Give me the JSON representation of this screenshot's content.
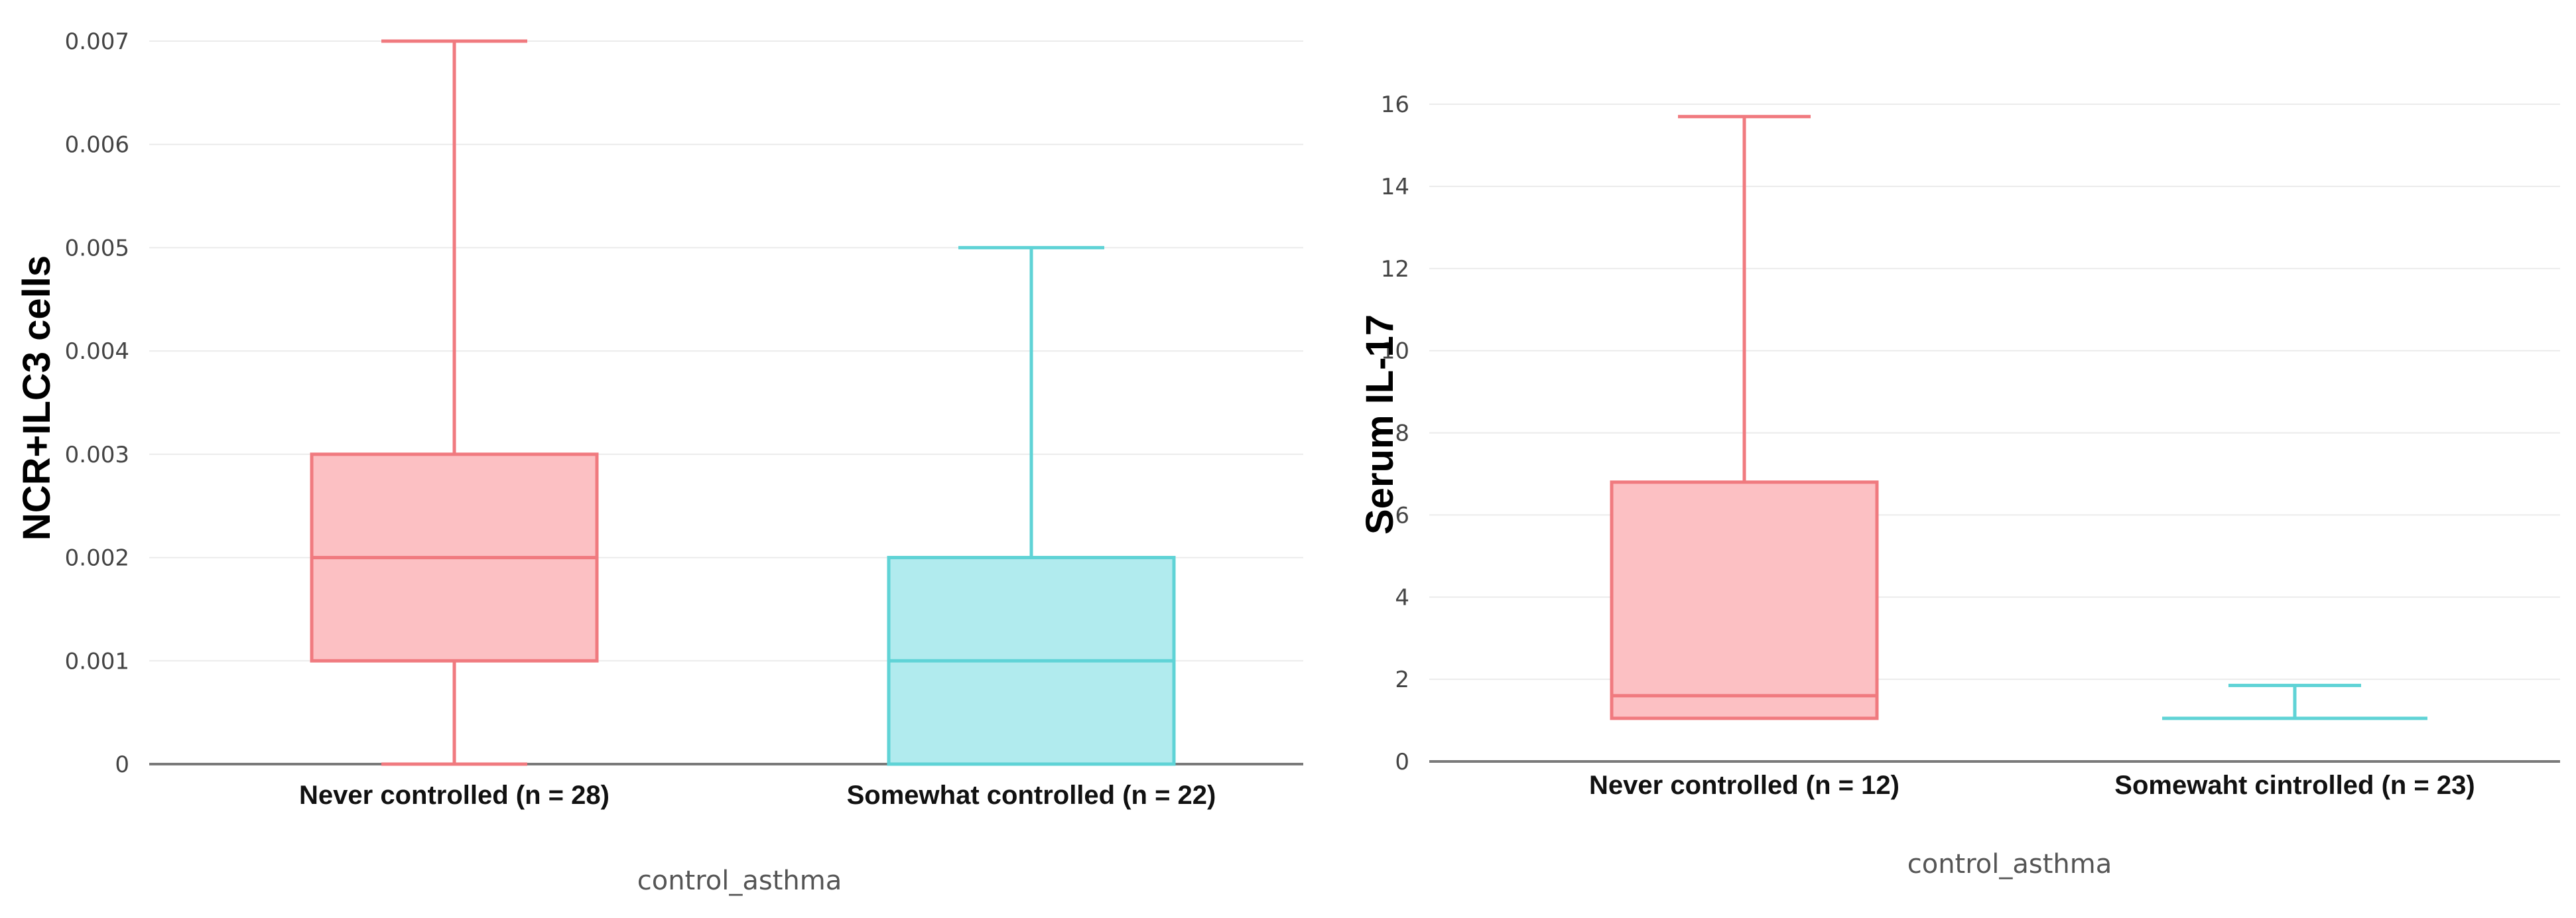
{
  "chart_data": [
    {
      "type": "box",
      "title": "",
      "xlabel": "control_asthma",
      "ylabel": "NCR+ILC3 cells",
      "ylim": [
        0,
        0.007
      ],
      "yticks": [
        "0",
        "0.001",
        "0.002",
        "0.003",
        "0.004",
        "0.005",
        "0.006",
        "0.007"
      ],
      "grid": true,
      "categories": [
        "Never controlled (n = 28)",
        "Somewhat controlled (n = 22)"
      ],
      "series": [
        {
          "min": 0,
          "q1": 0.001,
          "median": 0.002,
          "q3": 0.003,
          "max": 0.007,
          "color": "#f07a7f",
          "fill": "#fcc0c3"
        },
        {
          "min": 0,
          "q1": 0,
          "median": 0.001,
          "q3": 0.002,
          "max": 0.005,
          "color": "#5fd3d6",
          "fill": "#b1ebee"
        }
      ]
    },
    {
      "type": "box",
      "title": "",
      "xlabel": "control_asthma",
      "ylabel": "Serum IL-17",
      "ylim": [
        0,
        16.6
      ],
      "yticks": [
        "0",
        "2",
        "4",
        "6",
        "8",
        "10",
        "12",
        "14",
        "16"
      ],
      "grid": true,
      "categories": [
        "Never controlled (n = 12)",
        "Somewaht cintrolled (n = 23)"
      ],
      "series": [
        {
          "min": 1.05,
          "q1": 1.05,
          "median": 1.6,
          "q3": 6.8,
          "max": 15.7,
          "color": "#f07a7f",
          "fill": "#fcc0c3"
        },
        {
          "min": 1.05,
          "q1": 1.05,
          "median": 1.05,
          "q3": 1.05,
          "max": 1.85,
          "color": "#5fd3d6",
          "fill": "#b1ebee"
        }
      ]
    }
  ]
}
